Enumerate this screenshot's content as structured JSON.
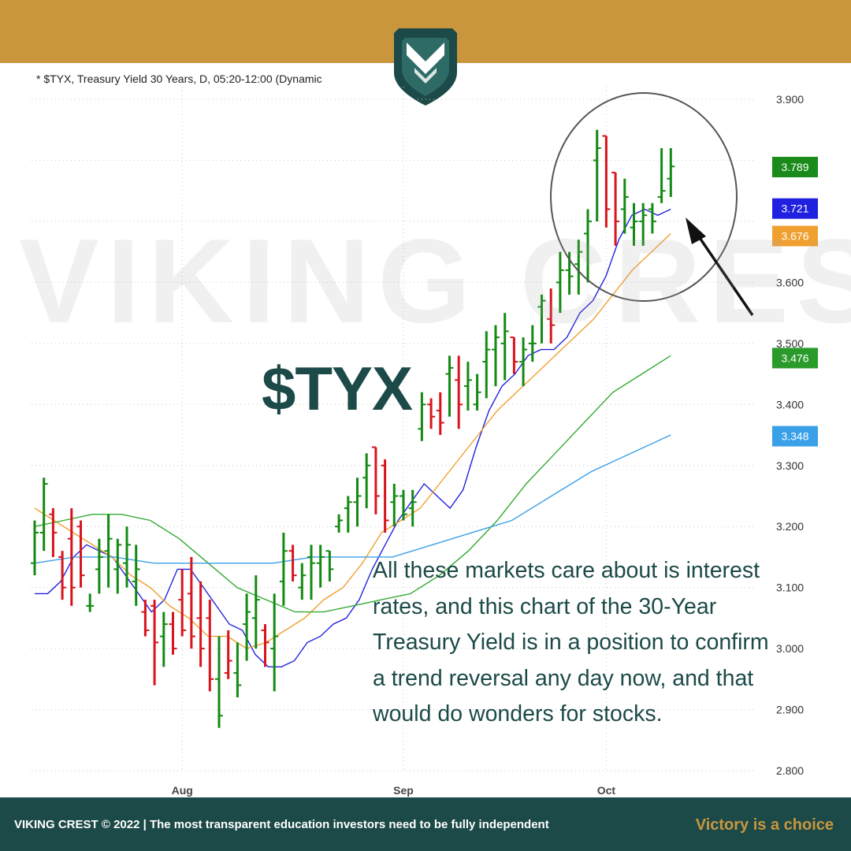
{
  "brand": {
    "name": "VIKING CREST",
    "watermark": "VIKING CREST",
    "logo_icon": "viking-crest-shield-icon",
    "colors": {
      "gold": "#c9963e",
      "teal": "#1c4a48"
    }
  },
  "chart_header": "* $TYX, Treasury Yield 30 Years, D, 05:20-12:00 (Dynamic",
  "ticker": "$TYX",
  "annotation": "All these markets care about is interest rates, and this chart of the 30-Year Treasury Yield is in a position to confirm a trend reversal any day now, and that would do wonders for stocks.",
  "footer": {
    "left": "VIKING CREST © 2022   |   The most transparent education investors need to be fully independent",
    "right": "Victory is a choice"
  },
  "chart_data": {
    "type": "line",
    "grid": true,
    "ylim": [
      2.8,
      3.9
    ],
    "y_ticks": [
      "3.900",
      "3.600",
      "3.500",
      "3.400",
      "3.300",
      "3.200",
      "3.100",
      "3.000",
      "2.900",
      "2.800"
    ],
    "x_ticks": [
      {
        "label": "Aug",
        "index": 8
      },
      {
        "label": "Sep",
        "index": 20
      },
      {
        "label": "Oct",
        "index": 31
      }
    ],
    "bars_up_color": "#138a13",
    "bars_down_color": "#d8141e",
    "bars": [
      {
        "o": 3.14,
        "h": 3.21,
        "l": 3.12,
        "c": 3.19,
        "d": "up"
      },
      {
        "o": 3.19,
        "h": 3.28,
        "l": 3.16,
        "c": 3.27,
        "d": "up"
      },
      {
        "o": 3.22,
        "h": 3.23,
        "l": 3.15,
        "c": 3.19,
        "d": "down"
      },
      {
        "o": 3.15,
        "h": 3.16,
        "l": 3.08,
        "c": 3.1,
        "d": "down"
      },
      {
        "o": 3.18,
        "h": 3.23,
        "l": 3.07,
        "c": 3.1,
        "d": "down"
      },
      {
        "o": 3.2,
        "h": 3.21,
        "l": 3.1,
        "c": 3.12,
        "d": "down"
      },
      {
        "o": 3.07,
        "h": 3.09,
        "l": 3.06,
        "c": 3.07,
        "d": "up"
      },
      {
        "o": 3.13,
        "h": 3.18,
        "l": 3.09,
        "c": 3.15,
        "d": "up"
      },
      {
        "o": 3.16,
        "h": 3.22,
        "l": 3.1,
        "c": 3.18,
        "d": "up"
      },
      {
        "o": 3.13,
        "h": 3.18,
        "l": 3.09,
        "c": 3.17,
        "d": "up"
      },
      {
        "o": 3.14,
        "h": 3.2,
        "l": 3.1,
        "c": 3.17,
        "d": "up"
      },
      {
        "o": 3.11,
        "h": 3.17,
        "l": 3.07,
        "c": 3.13,
        "d": "up"
      },
      {
        "o": 3.06,
        "h": 3.08,
        "l": 3.02,
        "c": 3.03,
        "d": "down"
      },
      {
        "o": 3.07,
        "h": 3.08,
        "l": 2.94,
        "c": 3.01,
        "d": "down"
      },
      {
        "o": 3.02,
        "h": 3.06,
        "l": 2.97,
        "c": 3.04,
        "d": "up"
      },
      {
        "o": 3.04,
        "h": 3.06,
        "l": 2.99,
        "c": 3.0,
        "d": "down"
      },
      {
        "o": 3.08,
        "h": 3.13,
        "l": 3.02,
        "c": 3.03,
        "d": "down"
      },
      {
        "o": 3.09,
        "h": 3.15,
        "l": 3.0,
        "c": 3.02,
        "d": "down"
      },
      {
        "o": 3.05,
        "h": 3.11,
        "l": 2.97,
        "c": 3.0,
        "d": "down"
      },
      {
        "o": 3.05,
        "h": 3.08,
        "l": 2.93,
        "c": 2.95,
        "d": "down"
      },
      {
        "o": 2.95,
        "h": 3.02,
        "l": 2.87,
        "c": 2.89,
        "d": "up"
      },
      {
        "o": 2.96,
        "h": 3.03,
        "l": 2.95,
        "c": 2.98,
        "d": "down"
      },
      {
        "o": 2.96,
        "h": 3.01,
        "l": 2.92,
        "c": 2.94,
        "d": "up"
      },
      {
        "o": 3.04,
        "h": 3.09,
        "l": 2.98,
        "c": 3.06,
        "d": "up"
      },
      {
        "o": 3.05,
        "h": 3.12,
        "l": 3.0,
        "c": 3.08,
        "d": "up"
      },
      {
        "o": 3.03,
        "h": 3.04,
        "l": 2.97,
        "c": 3.01,
        "d": "down"
      },
      {
        "o": 3.0,
        "h": 3.09,
        "l": 2.93,
        "c": 3.02,
        "d": "up"
      },
      {
        "o": 3.11,
        "h": 3.19,
        "l": 3.07,
        "c": 3.16,
        "d": "up"
      },
      {
        "o": 3.16,
        "h": 3.17,
        "l": 3.11,
        "c": 3.12,
        "d": "down"
      },
      {
        "o": 3.1,
        "h": 3.14,
        "l": 3.08,
        "c": 3.12,
        "d": "up"
      },
      {
        "o": 3.15,
        "h": 3.17,
        "l": 3.08,
        "c": 3.14,
        "d": "up"
      },
      {
        "o": 3.14,
        "h": 3.17,
        "l": 3.1,
        "c": 3.15,
        "d": "up"
      },
      {
        "o": 3.16,
        "h": 3.16,
        "l": 3.11,
        "c": 3.13,
        "d": "up"
      },
      {
        "o": 3.2,
        "h": 3.22,
        "l": 3.19,
        "c": 3.21,
        "d": "up"
      },
      {
        "o": 3.23,
        "h": 3.25,
        "l": 3.19,
        "c": 3.24,
        "d": "up"
      },
      {
        "o": 3.24,
        "h": 3.28,
        "l": 3.2,
        "c": 3.25,
        "d": "up"
      },
      {
        "o": 3.28,
        "h": 3.32,
        "l": 3.23,
        "c": 3.3,
        "d": "up"
      },
      {
        "o": 3.33,
        "h": 3.33,
        "l": 3.22,
        "c": 3.25,
        "d": "down"
      },
      {
        "o": 3.3,
        "h": 3.31,
        "l": 3.19,
        "c": 3.21,
        "d": "down"
      },
      {
        "o": 3.24,
        "h": 3.27,
        "l": 3.2,
        "c": 3.25,
        "d": "up"
      },
      {
        "o": 3.25,
        "h": 3.26,
        "l": 3.21,
        "c": 3.22,
        "d": "up"
      },
      {
        "o": 3.23,
        "h": 3.26,
        "l": 3.2,
        "c": 3.24,
        "d": "up"
      },
      {
        "o": 3.36,
        "h": 3.42,
        "l": 3.34,
        "c": 3.4,
        "d": "up"
      },
      {
        "o": 3.4,
        "h": 3.41,
        "l": 3.36,
        "c": 3.38,
        "d": "down"
      },
      {
        "o": 3.39,
        "h": 3.42,
        "l": 3.35,
        "c": 3.37,
        "d": "down"
      },
      {
        "o": 3.45,
        "h": 3.48,
        "l": 3.38,
        "c": 3.46,
        "d": "up"
      },
      {
        "o": 3.44,
        "h": 3.48,
        "l": 3.36,
        "c": 3.4,
        "d": "down"
      },
      {
        "o": 3.43,
        "h": 3.47,
        "l": 3.39,
        "c": 3.44,
        "d": "up"
      },
      {
        "o": 3.4,
        "h": 3.45,
        "l": 3.39,
        "c": 3.42,
        "d": "up"
      },
      {
        "o": 3.47,
        "h": 3.52,
        "l": 3.41,
        "c": 3.49,
        "d": "up"
      },
      {
        "o": 3.49,
        "h": 3.53,
        "l": 3.43,
        "c": 3.51,
        "d": "up"
      },
      {
        "o": 3.5,
        "h": 3.55,
        "l": 3.44,
        "c": 3.52,
        "d": "up"
      },
      {
        "o": 3.51,
        "h": 3.51,
        "l": 3.45,
        "c": 3.47,
        "d": "down"
      },
      {
        "o": 3.47,
        "h": 3.51,
        "l": 3.43,
        "c": 3.49,
        "d": "up"
      },
      {
        "o": 3.5,
        "h": 3.53,
        "l": 3.47,
        "c": 3.5,
        "d": "up"
      },
      {
        "o": 3.56,
        "h": 3.58,
        "l": 3.5,
        "c": 3.57,
        "d": "up"
      },
      {
        "o": 3.54,
        "h": 3.59,
        "l": 3.5,
        "c": 3.53,
        "d": "down"
      },
      {
        "o": 3.6,
        "h": 3.65,
        "l": 3.55,
        "c": 3.62,
        "d": "up"
      },
      {
        "o": 3.62,
        "h": 3.65,
        "l": 3.58,
        "c": 3.61,
        "d": "up"
      },
      {
        "o": 3.63,
        "h": 3.67,
        "l": 3.58,
        "c": 3.65,
        "d": "up"
      },
      {
        "o": 3.68,
        "h": 3.72,
        "l": 3.6,
        "c": 3.7,
        "d": "up"
      },
      {
        "o": 3.8,
        "h": 3.85,
        "l": 3.7,
        "c": 3.82,
        "d": "up"
      },
      {
        "o": 3.84,
        "h": 3.84,
        "l": 3.69,
        "c": 3.72,
        "d": "down"
      },
      {
        "o": 3.78,
        "h": 3.78,
        "l": 3.66,
        "c": 3.7,
        "d": "down"
      },
      {
        "o": 3.72,
        "h": 3.77,
        "l": 3.68,
        "c": 3.74,
        "d": "up"
      },
      {
        "o": 3.69,
        "h": 3.73,
        "l": 3.66,
        "c": 3.7,
        "d": "up"
      },
      {
        "o": 3.7,
        "h": 3.73,
        "l": 3.66,
        "c": 3.71,
        "d": "up"
      },
      {
        "o": 3.72,
        "h": 3.73,
        "l": 3.68,
        "c": 3.7,
        "d": "up"
      },
      {
        "o": 3.74,
        "h": 3.82,
        "l": 3.73,
        "c": 3.75,
        "d": "up"
      },
      {
        "o": 3.77,
        "h": 3.82,
        "l": 3.74,
        "c": 3.79,
        "d": "up"
      }
    ],
    "series": [
      {
        "color": "#2222dd",
        "values": [
          3.09,
          3.09,
          3.11,
          3.15,
          3.17,
          3.16,
          3.15,
          3.12,
          3.09,
          3.06,
          3.08,
          3.13,
          3.13,
          3.1,
          3.07,
          3.04,
          3.03,
          2.99,
          2.97,
          2.97,
          2.98,
          3.01,
          3.02,
          3.04,
          3.05,
          3.08,
          3.13,
          3.17,
          3.21,
          3.24,
          3.27,
          3.25,
          3.23,
          3.26,
          3.33,
          3.39,
          3.43,
          3.45,
          3.48,
          3.49,
          3.49,
          3.51,
          3.55,
          3.57,
          3.61,
          3.67,
          3.71,
          3.72,
          3.71,
          3.72
        ]
      },
      {
        "color": "#f0a030",
        "values": [
          3.23,
          3.21,
          3.19,
          3.17,
          3.15,
          3.12,
          3.1,
          3.07,
          3.05,
          3.02,
          3.02,
          3.0,
          3.01,
          3.03,
          3.05,
          3.08,
          3.1,
          3.14,
          3.19,
          3.21,
          3.23,
          3.27,
          3.31,
          3.35,
          3.39,
          3.42,
          3.45,
          3.48,
          3.51,
          3.54,
          3.58,
          3.62,
          3.65,
          3.68
        ]
      },
      {
        "color": "#33aa33",
        "values": [
          3.2,
          3.21,
          3.22,
          3.22,
          3.21,
          3.18,
          3.14,
          3.1,
          3.08,
          3.06,
          3.06,
          3.07,
          3.08,
          3.09,
          3.12,
          3.16,
          3.21,
          3.27,
          3.32,
          3.37,
          3.42,
          3.45,
          3.48
        ]
      },
      {
        "color": "#3aa0e8",
        "values": [
          3.14,
          3.15,
          3.15,
          3.14,
          3.14,
          3.14,
          3.14,
          3.15,
          3.15,
          3.15,
          3.17,
          3.19,
          3.21,
          3.25,
          3.29,
          3.32,
          3.35
        ]
      }
    ],
    "last_value_labels": [
      {
        "value": "3.789",
        "color": "#1a8a1a"
      },
      {
        "value": "3.721",
        "color": "#2020e0"
      },
      {
        "value": "3.676",
        "color": "#f0a030"
      },
      {
        "value": "3.476",
        "color": "#2a9a2a"
      },
      {
        "value": "3.348",
        "color": "#3aa0e8"
      }
    ]
  }
}
